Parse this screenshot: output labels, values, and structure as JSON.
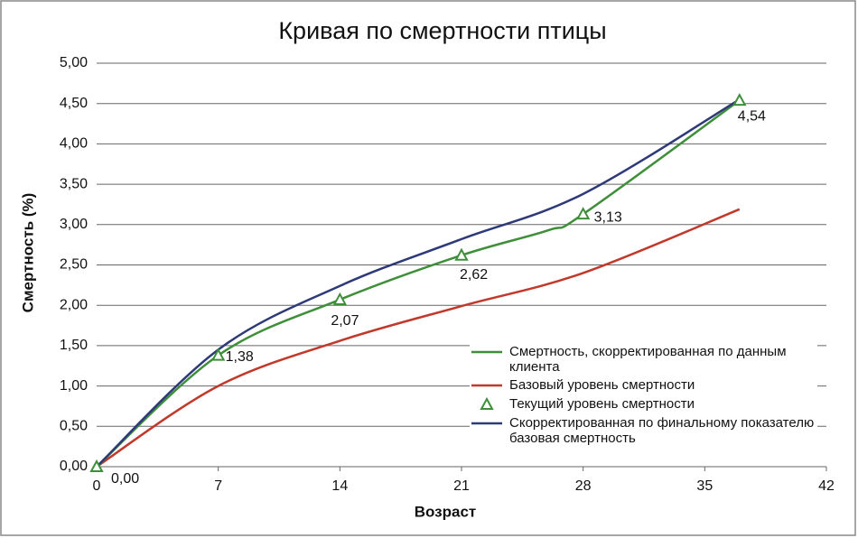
{
  "chart_data": {
    "type": "line",
    "title": "Кривая по смертности птицы",
    "x_label": "Возраст",
    "y_label": "Смертность (%)",
    "xlim": [
      0,
      42
    ],
    "xticks": [
      0,
      7,
      14,
      21,
      28,
      35,
      42
    ],
    "ylim": [
      0,
      5
    ],
    "yticks": [
      {
        "value": 0,
        "label": "0,00"
      },
      {
        "value": 0.5,
        "label": "0,50"
      },
      {
        "value": 1,
        "label": "1,00"
      },
      {
        "value": 1.5,
        "label": "1,50"
      },
      {
        "value": 2,
        "label": "2,00"
      },
      {
        "value": 2.5,
        "label": "2,50"
      },
      {
        "value": 3,
        "label": "3,00"
      },
      {
        "value": 3.5,
        "label": "3,50"
      },
      {
        "value": 4,
        "label": "4,00"
      },
      {
        "value": 4.5,
        "label": "4,50"
      },
      {
        "value": 5,
        "label": "5,00"
      }
    ],
    "grid": true,
    "legend": "lower right",
    "series": [
      {
        "name": "Смертность, скорректированная по данным клиента",
        "color": "#3f8f3a",
        "marker": "none",
        "x": [
          0,
          7,
          14,
          21,
          26,
          28,
          37
        ],
        "values": [
          0,
          1.38,
          2.07,
          2.62,
          2.93,
          3.13,
          4.54
        ]
      },
      {
        "name": "Базовый уровень смертности",
        "color": "#c0392b",
        "marker": "none",
        "x": [
          0,
          7,
          14,
          21,
          28,
          37
        ],
        "values": [
          0,
          1.0,
          1.56,
          1.99,
          2.4,
          3.19
        ]
      },
      {
        "name": "Текущий уровень смертности",
        "color": "#3f8f3a",
        "marker": "triangle",
        "x": [
          0,
          7,
          14,
          21,
          28,
          37
        ],
        "values": [
          0,
          1.38,
          2.07,
          2.62,
          3.13,
          4.54
        ],
        "value_labels": [
          "0,00",
          "1,38",
          "2,07",
          "2,62",
          "3,13",
          "4,54"
        ]
      },
      {
        "name": "Скорректированная по финальному показателю базовая смертность",
        "color": "#2e3a78",
        "marker": "none",
        "x": [
          0,
          7,
          14,
          21,
          28,
          37
        ],
        "values": [
          0,
          1.45,
          2.24,
          2.82,
          3.38,
          4.55
        ]
      }
    ]
  }
}
